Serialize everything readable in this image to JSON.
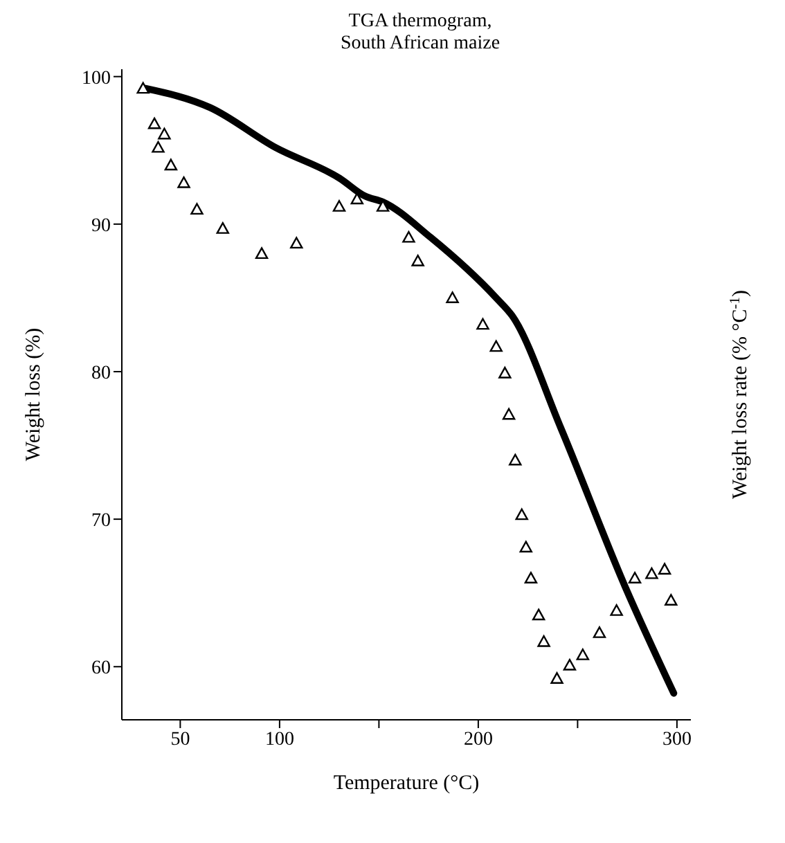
{
  "chart_data": {
    "type": "line",
    "title": "TGA thermogram,\nSouth African maize",
    "xlabel": "Temperature (°C)",
    "ylabel": "Weight loss (%)",
    "y2label": "Weight loss rate (% °C$^{-1}$)",
    "xlim": [
      20.6,
      307
    ],
    "xticks": [
      50,
      100,
      {
        "value": 150,
        "label": null
      },
      200,
      {
        "value": 250,
        "label": null
      },
      300
    ],
    "ylim": [
      56.4,
      100.5
    ],
    "yticks": [
      60,
      70,
      80,
      90,
      100
    ],
    "grid": false,
    "legend": false,
    "series": [
      {
        "color": "#000000",
        "marker": "none",
        "line_style": "solid",
        "x": [
          32.4,
          65,
          97.8,
          130.3,
          143,
          152,
          176,
          209,
          217,
          241.5,
          274,
          298.4
        ],
        "values": [
          99.2,
          97.9,
          95.2,
          93.1,
          91.9,
          91.5,
          89.1,
          85.0,
          83.8,
          76.2,
          65.4,
          58.2
        ]
      },
      {
        "type": "scatter",
        "color": "#000000",
        "marker": "triangle",
        "x": [
          31.3,
          37,
          38.9,
          42,
          45.3,
          51.8,
          58.4,
          71.4,
          91,
          108.5,
          130,
          139,
          152,
          165,
          169.6,
          187,
          202.3,
          209,
          213.4,
          215.4,
          218.6,
          221.9,
          224,
          226.5,
          230.4,
          233,
          239.6,
          246,
          252.6,
          261,
          269.6,
          278.8,
          287.3,
          293.8,
          297
        ],
        "values": [
          99.2,
          96.8,
          95.2,
          96.1,
          94.0,
          92.8,
          91.0,
          89.7,
          88.0,
          88.7,
          91.2,
          91.7,
          91.2,
          89.1,
          87.5,
          85.0,
          83.2,
          81.7,
          79.9,
          77.1,
          74.0,
          70.3,
          68.1,
          66.0,
          63.5,
          61.7,
          59.2,
          60.1,
          60.8,
          62.3,
          63.8,
          66.0,
          66.3,
          66.6,
          64.5
        ]
      }
    ]
  }
}
